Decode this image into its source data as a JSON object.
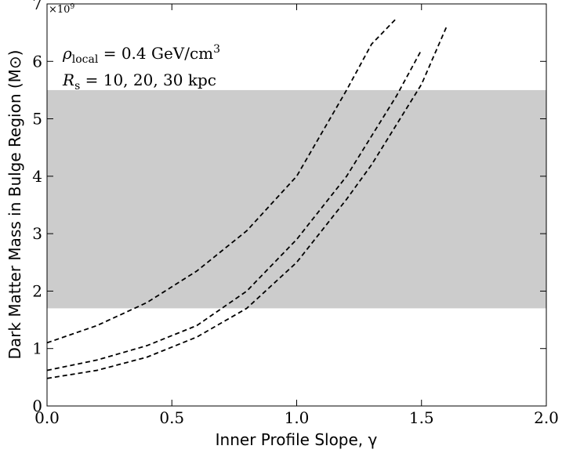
{
  "chart_data": {
    "type": "line",
    "xlabel": "Inner Profile Slope, γ",
    "ylabel": "Dark Matter Mass in Bulge Region (M⊙)",
    "offset_text": [
      "×10",
      "9"
    ],
    "annotations": [
      [
        "ρ",
        "local",
        " = 0.4 GeV/cm",
        "3"
      ],
      [
        "R",
        "s",
        " = 10, 20, 30 kpc",
        ""
      ]
    ],
    "x": [
      0,
      0.2,
      0.4,
      0.6,
      0.8,
      1.0,
      1.2,
      1.3,
      1.4,
      1.5,
      1.6
    ],
    "series": [
      {
        "color": "#000000",
        "values": [
          1.1,
          1.4,
          1.8,
          2.35,
          3.05,
          4.0,
          5.5,
          6.3,
          6.75,
          null,
          null
        ]
      },
      {
        "color": "#000000",
        "values": [
          0.62,
          0.8,
          1.05,
          1.4,
          2.0,
          2.9,
          4.0,
          4.7,
          5.4,
          6.2,
          null
        ]
      },
      {
        "color": "#000000",
        "values": [
          0.48,
          0.62,
          0.85,
          1.2,
          1.7,
          2.5,
          3.6,
          4.2,
          4.9,
          5.6,
          6.6
        ]
      }
    ],
    "shaded_band": [
      1.7,
      5.5
    ],
    "band_color": "#cccccc",
    "xlim": [
      0,
      2
    ],
    "ylim": [
      0,
      7
    ],
    "xticks": [
      {
        "value": 0,
        "label": "0.0"
      },
      {
        "value": 0.5,
        "label": "0.5"
      },
      {
        "value": 1,
        "label": "1.0"
      },
      {
        "value": 1.5,
        "label": "1.5"
      },
      {
        "value": 2,
        "label": "2.0"
      }
    ],
    "yticks": [
      0,
      1,
      2,
      3,
      4,
      5,
      6,
      7
    ],
    "grid": false
  }
}
